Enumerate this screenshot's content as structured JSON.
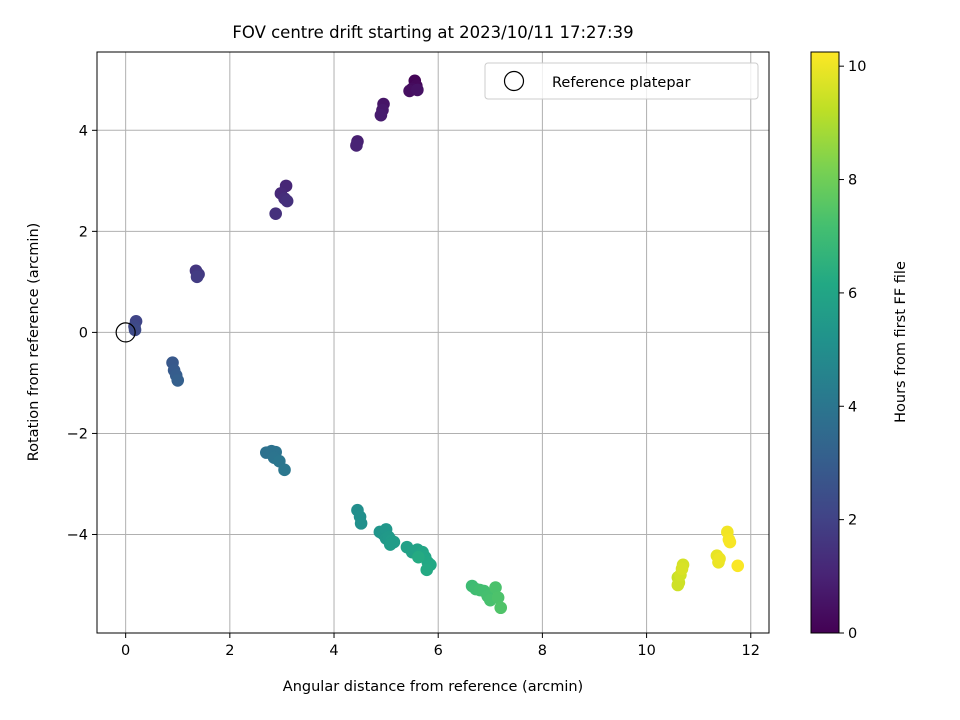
{
  "chart_data": {
    "type": "scatter",
    "title": "FOV centre drift starting at 2023/10/11 17:27:39",
    "xlabel": "Angular distance from reference (arcmin)",
    "ylabel": "Rotation from reference (arcmin)",
    "xlim": [
      -0.55,
      12.35
    ],
    "ylim": [
      -5.95,
      5.55
    ],
    "xticks": [
      0,
      2,
      4,
      6,
      8,
      10,
      12
    ],
    "yticks": [
      -4,
      -2,
      0,
      2,
      4
    ],
    "grid": true,
    "legend": {
      "placement": "top-right",
      "entries": [
        {
          "label": "Reference platepar",
          "marker": "open-circle"
        }
      ]
    },
    "reference_point": {
      "x": 0,
      "y": 0
    },
    "colorbar": {
      "label": "Hours from first FF file",
      "range": [
        0,
        10.25
      ],
      "ticks": [
        0,
        2,
        4,
        6,
        8,
        10
      ],
      "colormap": "viridis"
    },
    "points": [
      {
        "x": 5.55,
        "y": 4.98,
        "t": 0.1
      },
      {
        "x": 5.58,
        "y": 4.88,
        "t": 0.2
      },
      {
        "x": 5.5,
        "y": 4.82,
        "t": 0.3
      },
      {
        "x": 5.45,
        "y": 4.78,
        "t": 0.4
      },
      {
        "x": 5.6,
        "y": 4.8,
        "t": 0.5
      },
      {
        "x": 4.95,
        "y": 4.52,
        "t": 0.6
      },
      {
        "x": 4.93,
        "y": 4.4,
        "t": 0.7
      },
      {
        "x": 4.9,
        "y": 4.3,
        "t": 0.8
      },
      {
        "x": 4.45,
        "y": 3.78,
        "t": 0.9
      },
      {
        "x": 4.43,
        "y": 3.7,
        "t": 1.0
      },
      {
        "x": 3.08,
        "y": 2.9,
        "t": 1.1
      },
      {
        "x": 2.98,
        "y": 2.75,
        "t": 1.2
      },
      {
        "x": 3.05,
        "y": 2.65,
        "t": 1.3
      },
      {
        "x": 3.1,
        "y": 2.6,
        "t": 1.4
      },
      {
        "x": 2.88,
        "y": 2.35,
        "t": 1.45
      },
      {
        "x": 1.35,
        "y": 1.22,
        "t": 1.6
      },
      {
        "x": 1.4,
        "y": 1.15,
        "t": 1.7
      },
      {
        "x": 1.37,
        "y": 1.1,
        "t": 1.8
      },
      {
        "x": 0.2,
        "y": 0.22,
        "t": 2.1
      },
      {
        "x": 0.17,
        "y": 0.12,
        "t": 2.2
      },
      {
        "x": 0.18,
        "y": 0.05,
        "t": 2.3
      },
      {
        "x": 0.9,
        "y": -0.6,
        "t": 2.8
      },
      {
        "x": 0.93,
        "y": -0.75,
        "t": 2.9
      },
      {
        "x": 0.97,
        "y": -0.85,
        "t": 3.0
      },
      {
        "x": 1.0,
        "y": -0.95,
        "t": 3.1
      },
      {
        "x": 2.7,
        "y": -2.38,
        "t": 3.8
      },
      {
        "x": 2.8,
        "y": -2.35,
        "t": 3.85
      },
      {
        "x": 2.88,
        "y": -2.37,
        "t": 3.9
      },
      {
        "x": 2.85,
        "y": -2.48,
        "t": 3.95
      },
      {
        "x": 2.95,
        "y": -2.55,
        "t": 4.0
      },
      {
        "x": 3.05,
        "y": -2.72,
        "t": 4.05
      },
      {
        "x": 4.45,
        "y": -3.52,
        "t": 5.0
      },
      {
        "x": 4.5,
        "y": -3.65,
        "t": 5.05
      },
      {
        "x": 4.52,
        "y": -3.78,
        "t": 5.1
      },
      {
        "x": 4.88,
        "y": -3.95,
        "t": 5.3
      },
      {
        "x": 4.95,
        "y": -4.0,
        "t": 5.35
      },
      {
        "x": 5.0,
        "y": -3.9,
        "t": 5.4
      },
      {
        "x": 5.0,
        "y": -4.08,
        "t": 5.45
      },
      {
        "x": 5.05,
        "y": -4.05,
        "t": 5.5
      },
      {
        "x": 5.1,
        "y": -4.12,
        "t": 5.55
      },
      {
        "x": 5.15,
        "y": -4.15,
        "t": 5.6
      },
      {
        "x": 5.08,
        "y": -4.2,
        "t": 5.62
      },
      {
        "x": 5.4,
        "y": -4.25,
        "t": 5.8
      },
      {
        "x": 5.5,
        "y": -4.35,
        "t": 5.85
      },
      {
        "x": 5.6,
        "y": -4.3,
        "t": 5.9
      },
      {
        "x": 5.65,
        "y": -4.4,
        "t": 5.95
      },
      {
        "x": 5.7,
        "y": -4.35,
        "t": 6.0
      },
      {
        "x": 5.75,
        "y": -4.45,
        "t": 6.05
      },
      {
        "x": 5.8,
        "y": -4.55,
        "t": 6.1
      },
      {
        "x": 5.85,
        "y": -4.6,
        "t": 6.15
      },
      {
        "x": 5.78,
        "y": -4.7,
        "t": 6.2
      },
      {
        "x": 5.62,
        "y": -4.45,
        "t": 6.25
      },
      {
        "x": 6.65,
        "y": -5.02,
        "t": 7.0
      },
      {
        "x": 6.72,
        "y": -5.08,
        "t": 7.05
      },
      {
        "x": 6.8,
        "y": -5.1,
        "t": 7.1
      },
      {
        "x": 6.88,
        "y": -5.12,
        "t": 7.15
      },
      {
        "x": 6.95,
        "y": -5.22,
        "t": 7.2
      },
      {
        "x": 7.0,
        "y": -5.3,
        "t": 7.25
      },
      {
        "x": 7.1,
        "y": -5.05,
        "t": 7.3
      },
      {
        "x": 7.15,
        "y": -5.25,
        "t": 7.35
      },
      {
        "x": 7.2,
        "y": -5.45,
        "t": 7.4
      },
      {
        "x": 10.6,
        "y": -4.85,
        "t": 9.4
      },
      {
        "x": 10.62,
        "y": -4.95,
        "t": 9.45
      },
      {
        "x": 10.6,
        "y": -5.0,
        "t": 9.5
      },
      {
        "x": 10.65,
        "y": -4.8,
        "t": 9.55
      },
      {
        "x": 10.7,
        "y": -4.6,
        "t": 9.6
      },
      {
        "x": 10.68,
        "y": -4.68,
        "t": 9.65
      },
      {
        "x": 11.35,
        "y": -4.42,
        "t": 9.9
      },
      {
        "x": 11.38,
        "y": -4.55,
        "t": 9.95
      },
      {
        "x": 11.4,
        "y": -4.48,
        "t": 10.0
      },
      {
        "x": 11.55,
        "y": -3.95,
        "t": 10.05
      },
      {
        "x": 11.58,
        "y": -4.1,
        "t": 10.1
      },
      {
        "x": 11.6,
        "y": -4.15,
        "t": 10.15
      },
      {
        "x": 11.75,
        "y": -4.62,
        "t": 10.2
      }
    ]
  }
}
